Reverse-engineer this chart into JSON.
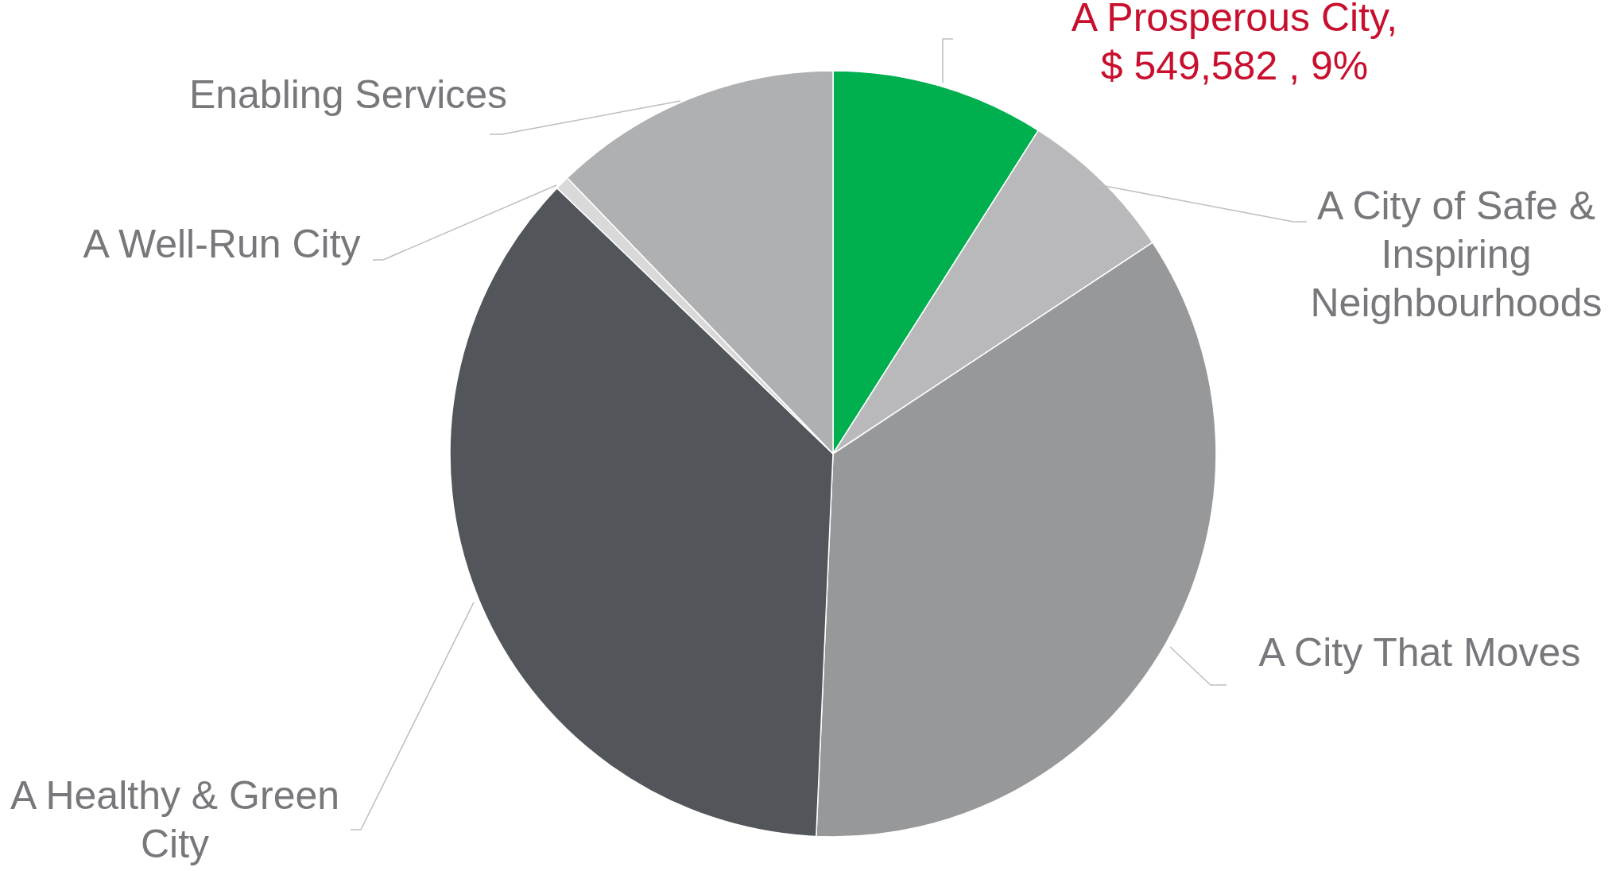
{
  "chart_data": {
    "type": "pie",
    "categories": [
      "A Prosperous City",
      "A City of Safe & Inspiring Neighbourhoods",
      "A City That Moves",
      "A Healthy & Green City",
      "A Well-Run City",
      "Enabling Services"
    ],
    "values": [
      9,
      6.7,
      35,
      36.5,
      0.6,
      12.2
    ],
    "colors": [
      "#00b04f",
      "#b9b9bb",
      "#97989a",
      "#525559",
      "#d9d9d9",
      "#afb0b2"
    ],
    "value_labels": [
      ", $ 549,582 , 9%",
      null,
      null,
      null,
      null,
      null
    ]
  }
}
